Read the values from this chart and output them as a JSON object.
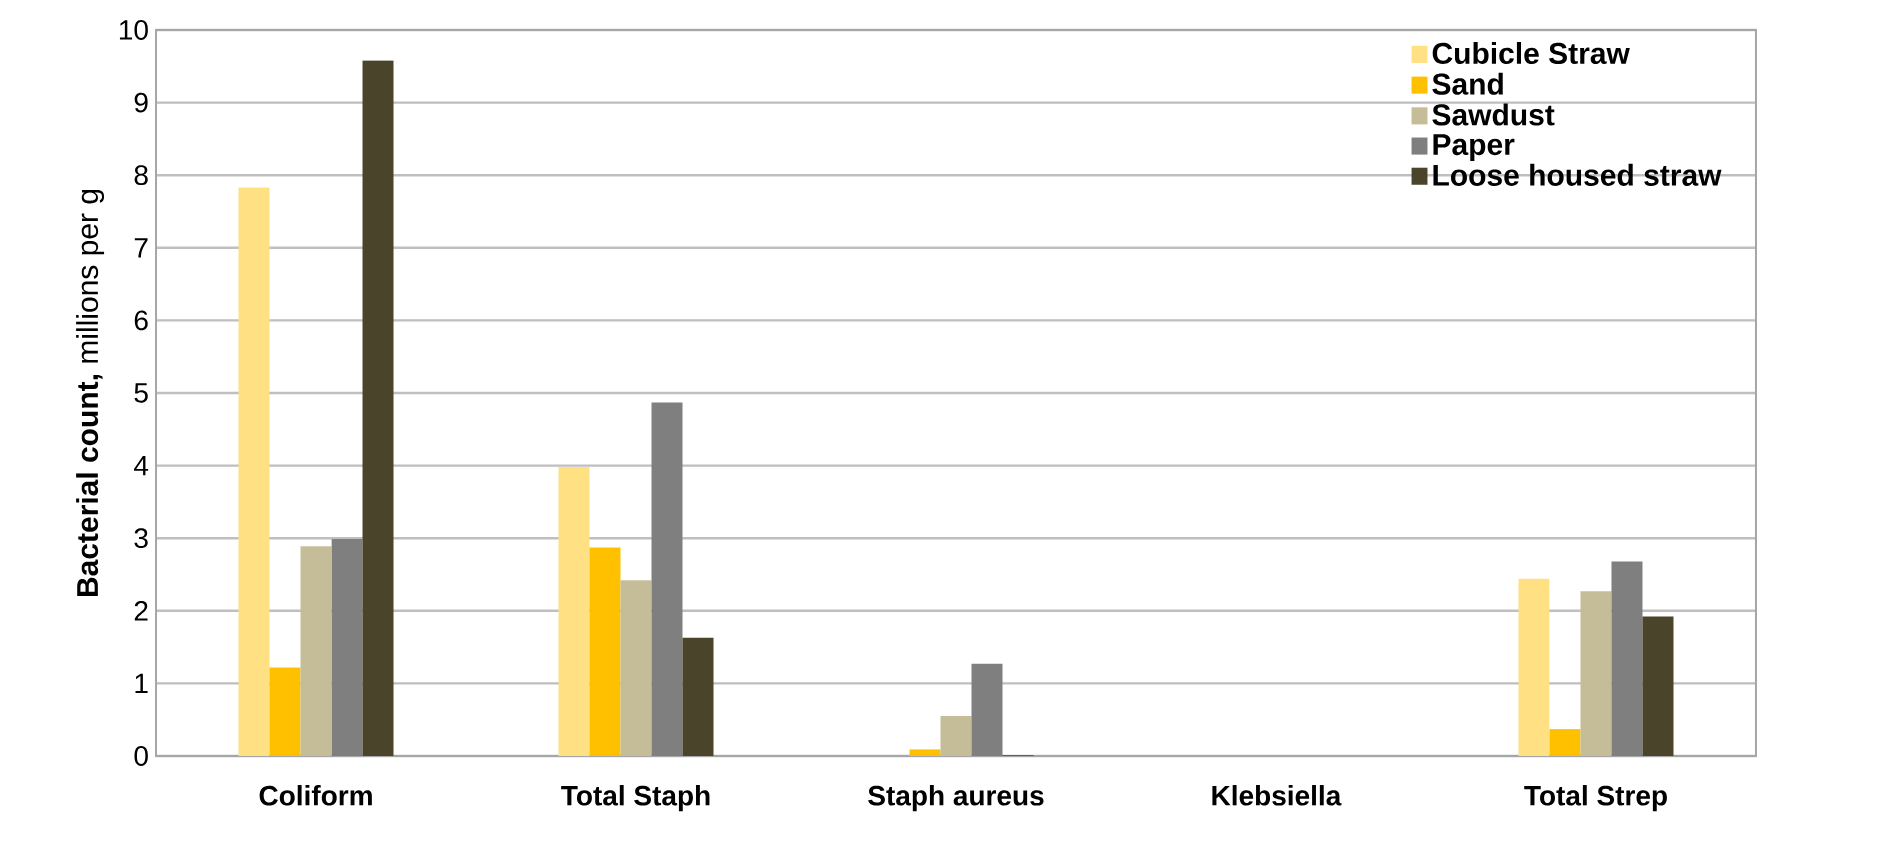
{
  "chart_data": {
    "type": "bar",
    "ylabel": "**Bacterial count,** millions per g",
    "categories": [
      "**Coliform**",
      "**Total Staph**",
      "**Staph aureus**",
      "**Klebsiella**",
      "**Total Strep**"
    ],
    "series": [
      {
        "name": "**Cubicle Straw**",
        "color": "#ffe083",
        "values": [
          7.83,
          3.98,
          0,
          0,
          2.44
        ]
      },
      {
        "name": "**Sand**",
        "color": "#ffc000",
        "values": [
          1.22,
          2.87,
          0.09,
          0,
          0.37
        ]
      },
      {
        "name": "**Sawdust**",
        "color": "#c4bd97",
        "values": [
          2.89,
          2.42,
          0.55,
          0,
          2.27
        ]
      },
      {
        "name": "**Paper**",
        "color": "#7f7f7f",
        "values": [
          2.99,
          4.87,
          1.27,
          0,
          2.68
        ]
      },
      {
        "name": "**Loose housed straw**",
        "color": "#4a452a",
        "values": [
          9.58,
          1.63,
          0.01,
          0,
          1.92
        ]
      }
    ],
    "ylim": [
      0,
      10
    ],
    "yticks": [
      0,
      1,
      2,
      3,
      4,
      5,
      6,
      7,
      8,
      9,
      10
    ],
    "grid": "y",
    "legend": "top right"
  }
}
